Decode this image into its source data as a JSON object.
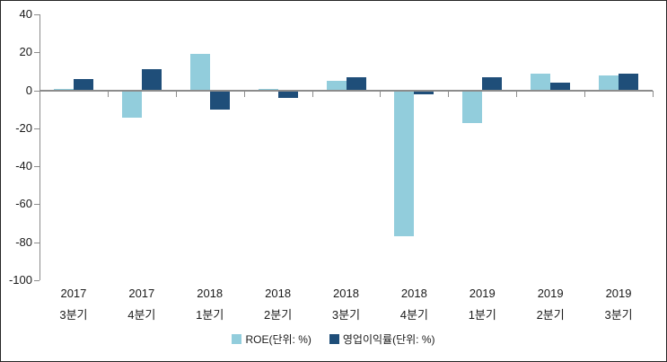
{
  "chart_data": {
    "type": "bar",
    "title": "",
    "categories": [
      {
        "year": "2017",
        "quarter": "3분기"
      },
      {
        "year": "2017",
        "quarter": "4분기"
      },
      {
        "year": "2018",
        "quarter": "1분기"
      },
      {
        "year": "2018",
        "quarter": "2분기"
      },
      {
        "year": "2018",
        "quarter": "3분기"
      },
      {
        "year": "2018",
        "quarter": "4분기"
      },
      {
        "year": "2019",
        "quarter": "1분기"
      },
      {
        "year": "2019",
        "quarter": "2분기"
      },
      {
        "year": "2019",
        "quarter": "3분기"
      }
    ],
    "series": [
      {
        "name": "ROE(단위: %)",
        "color": "#92CDDC",
        "values": [
          0.8,
          -14.3,
          19.3,
          0.9,
          5.1,
          -77,
          -17,
          9,
          7.7
        ]
      },
      {
        "name": "영업이익률(단위: %)",
        "color": "#1F4E79",
        "values": [
          6,
          11.3,
          -10,
          -3.8,
          6.8,
          -1.9,
          6.9,
          4.2,
          8.9
        ]
      }
    ],
    "ylim": [
      -100,
      40
    ],
    "yticks": [
      40,
      20,
      0,
      -20,
      -40,
      -60,
      -80,
      -100
    ],
    "grid": false,
    "legend_position": "bottom"
  },
  "colors": {
    "axis": "#8C8C8C",
    "text": "#1A1A1A",
    "frame_border": "#262626",
    "background": "#FFFFFF"
  }
}
